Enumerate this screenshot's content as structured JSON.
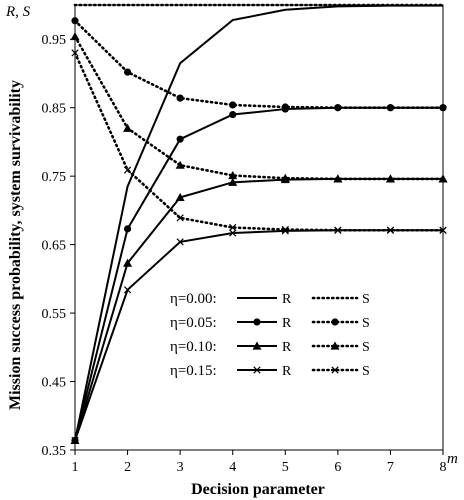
{
  "chart_data": {
    "type": "line",
    "title": "",
    "xlabel": "Decision parameter",
    "ylabel": "Mission success probability, system survivability",
    "x_axis_symbol": "m",
    "y_axis_symbol": "R, S",
    "x": [
      1,
      2,
      3,
      4,
      5,
      6,
      7,
      8
    ],
    "xlim": [
      1,
      8
    ],
    "ylim": [
      0.35,
      1.0
    ],
    "x_ticks": [
      "1",
      "2",
      "3",
      "4",
      "5",
      "6",
      "7",
      "8"
    ],
    "y_ticks": [
      "0.35",
      "0.45",
      "0.55",
      "0.65",
      "0.75",
      "0.85",
      "0.95"
    ],
    "grid": false,
    "legend_position": "bottom-center",
    "legend": [
      {
        "label": "η=0.00:",
        "r_label": "R",
        "s_label": "S",
        "marker": "none"
      },
      {
        "label": "η=0.05:",
        "r_label": "R",
        "s_label": "S",
        "marker": "circle"
      },
      {
        "label": "η=0.10:",
        "r_label": "R",
        "s_label": "S",
        "marker": "triangle"
      },
      {
        "label": "η=0.15:",
        "r_label": "R",
        "s_label": "S",
        "marker": "x"
      }
    ],
    "series": [
      {
        "eta": "0.00",
        "kind": "R",
        "style": "solid",
        "marker": "none",
        "values": [
          0.364,
          0.735,
          0.915,
          0.978,
          0.993,
          0.998,
          0.999,
          0.999
        ]
      },
      {
        "eta": "0.00",
        "kind": "S",
        "style": "dotted",
        "marker": "none",
        "values": [
          1.0,
          1.0,
          1.0,
          1.0,
          1.0,
          1.0,
          1.0,
          1.0
        ]
      },
      {
        "eta": "0.05",
        "kind": "R",
        "style": "solid",
        "marker": "circle",
        "values": [
          0.364,
          0.673,
          0.804,
          0.84,
          0.848,
          0.85,
          0.85,
          0.85
        ]
      },
      {
        "eta": "0.05",
        "kind": "S",
        "style": "dotted",
        "marker": "circle",
        "values": [
          0.977,
          0.902,
          0.864,
          0.854,
          0.851,
          0.85,
          0.85,
          0.85
        ]
      },
      {
        "eta": "0.10",
        "kind": "R",
        "style": "solid",
        "marker": "triangle",
        "values": [
          0.364,
          0.623,
          0.719,
          0.741,
          0.745,
          0.746,
          0.746,
          0.746
        ]
      },
      {
        "eta": "0.10",
        "kind": "S",
        "style": "dotted",
        "marker": "triangle",
        "values": [
          0.954,
          0.82,
          0.766,
          0.751,
          0.747,
          0.746,
          0.746,
          0.746
        ]
      },
      {
        "eta": "0.15",
        "kind": "R",
        "style": "solid",
        "marker": "x",
        "values": [
          0.364,
          0.584,
          0.654,
          0.667,
          0.67,
          0.671,
          0.671,
          0.671
        ]
      },
      {
        "eta": "0.15",
        "kind": "S",
        "style": "dotted",
        "marker": "x",
        "values": [
          0.93,
          0.759,
          0.689,
          0.675,
          0.672,
          0.671,
          0.671,
          0.671
        ]
      }
    ]
  }
}
